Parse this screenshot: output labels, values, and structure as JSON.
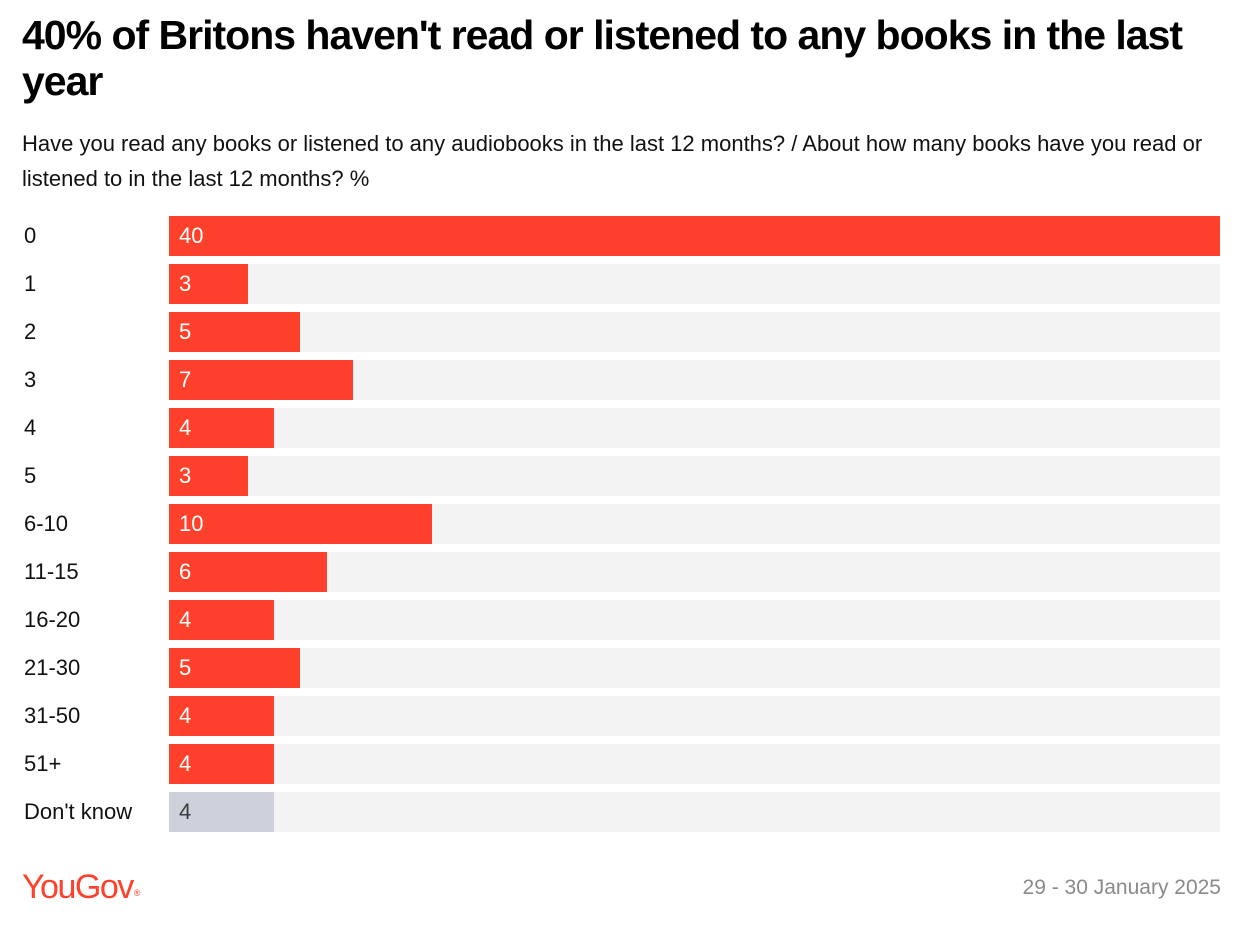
{
  "colors": {
    "bar": "#ff412c",
    "bar_other": "#cdd1db",
    "track": "#f3f3f3",
    "label_on_bar": "#ffffff",
    "label_on_other": "#3c3c3c",
    "brand": "#ff412c"
  },
  "footer": {
    "logo_text": "YouGov",
    "date": "29 - 30 January 2025"
  },
  "chart_data": {
    "type": "bar",
    "orientation": "horizontal",
    "title": "40% of Britons haven't read or listened to any books in the last year",
    "subtitle": "Have you read any books or listened to any audiobooks in the last 12 months? / About how many books have you read or listened to in the last 12 months? %",
    "xlim": [
      0,
      40
    ],
    "grid": false,
    "categories": [
      "0",
      "1",
      "2",
      "3",
      "4",
      "5",
      "6-10",
      "11-15",
      "16-20",
      "21-30",
      "31-50",
      "51+",
      "Don't know"
    ],
    "values": [
      40,
      3,
      5,
      7,
      4,
      3,
      10,
      6,
      4,
      5,
      4,
      4,
      4
    ],
    "labels": [
      "40",
      "3",
      "5",
      "7",
      "4",
      "3",
      "10",
      "6",
      "4",
      "5",
      "4",
      "4",
      "4"
    ],
    "highlight_other": [
      "Don't know"
    ]
  }
}
